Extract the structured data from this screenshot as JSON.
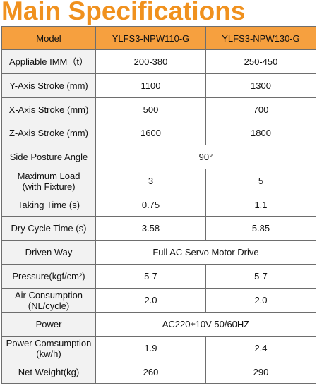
{
  "title": "Main Specifications",
  "header": {
    "label": "Model",
    "col1": "YLFS3-NPW110-G",
    "col2": "YLFS3-NPW130-G"
  },
  "rows": [
    {
      "label": "Appliable IMM（t）",
      "col1": "200-380",
      "col2": "250-450"
    },
    {
      "label": "Y-Axis Stroke (mm)",
      "col1": "1100",
      "col2": "1300"
    },
    {
      "label": "X-Axis Stroke (mm)",
      "col1": "500",
      "col2": "700"
    },
    {
      "label": "Z-Axis Stroke (mm)",
      "col1": "1600",
      "col2": "1800"
    },
    {
      "label": "Side Posture Angle",
      "merged": "90°"
    },
    {
      "label_line1": "Maximum Load",
      "label_line2": "(with Fixture)",
      "col1": "3",
      "col2": "5"
    },
    {
      "label": "Taking Time (s)",
      "col1": "0.75",
      "col2": "1.1"
    },
    {
      "label": "Dry Cycle Time (s)",
      "col1": "3.58",
      "col2": "5.85"
    },
    {
      "label": "Driven Way",
      "merged": "Full AC Servo Motor Drive"
    },
    {
      "label": "Pressure(kgf/cm²)",
      "col1": "5-7",
      "col2": "5-7"
    },
    {
      "label_line1": "Air Consumption",
      "label_line2": "(NL/cycle)",
      "col1": "2.0",
      "col2": "2.0"
    },
    {
      "label": "Power",
      "merged": "AC220±10V 50/60HZ"
    },
    {
      "label_line1": "Power Comsumption",
      "label_line2": "(kw/h)",
      "col1": "1.9",
      "col2": "2.4"
    },
    {
      "label": "Net Weight(kg)",
      "col1": "260",
      "col2": "290"
    }
  ],
  "colors": {
    "accent": "#f0911e",
    "header_fill": "#f6a03f",
    "label_fill": "#f2f2f2",
    "border": "#6e6e6e"
  }
}
